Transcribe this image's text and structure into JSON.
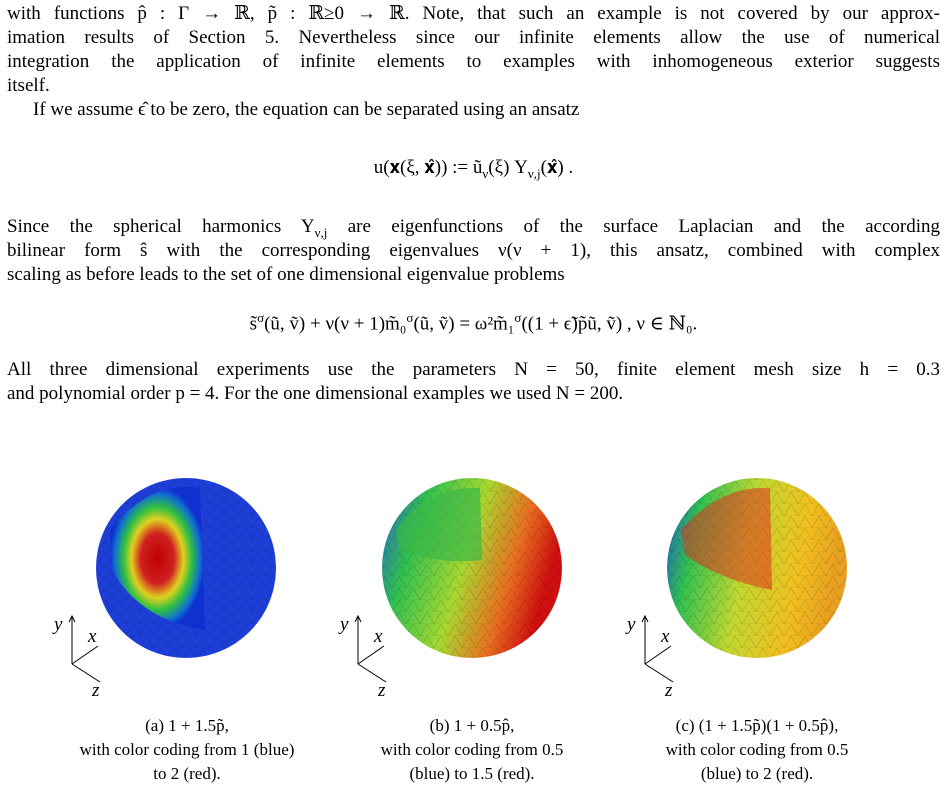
{
  "body": {
    "p1": [
      "with functions p̂ : Γ → ℝ, p̃ : ℝ≥0 → ℝ. Note, that such an example is not covered by our approx-",
      "imation results of Section 5. Nevertheless since our infinite elements allow the use of numerical",
      "integration the application of infinite elements to examples with inhomogeneous exterior suggests",
      "itself."
    ],
    "p2": [
      "If we assume ϵ̂ to be zero, the equation can be separated using an ansatz"
    ],
    "eq1": [
      "u(𝐱(ξ, 𝐱̂)) := ũ",
      "ν",
      "(ξ) Y",
      "ν,j",
      "(𝐱̂) ."
    ],
    "p3a": [
      "Since the spherical harmonics Y",
      "ν,j",
      " are eigenfunctions of the surface Laplacian and the according"
    ],
    "p3": [
      "bilinear form ŝ with the corresponding eigenvalues ν(ν + 1), this ansatz, combined with complex",
      "scaling as before leads to the set of one dimensional eigenvalue problems"
    ],
    "eq2": [
      "s̃",
      "σ",
      "(ũ, ṽ) + ν(ν + 1)m̃₀",
      "σ",
      "(ũ, ṽ) = ω²m̃₁",
      "σ",
      "((1 + ϵ̃)p̃ũ, ṽ) ,    ν ∈ ℕ₀."
    ],
    "p4": [
      "All three dimensional experiments use the parameters N = 50, finite element mesh size h = 0.3",
      "and polynomial order p = 4. For the one dimensional examples we used N = 200."
    ]
  },
  "figures": [
    {
      "axis_labels": [
        "y",
        "x",
        "z"
      ],
      "caption": [
        "(a) 1 + 1.5p̃,",
        "with color coding from 1 (blue)",
        "to 2 (red)."
      ]
    },
    {
      "axis_labels": [
        "y",
        "x",
        "z"
      ],
      "caption": [
        "(b) 1 + 0.5p̂,",
        "with color coding from 0.5",
        "(blue) to 1.5 (red)."
      ]
    },
    {
      "axis_labels": [
        "y",
        "x",
        "z"
      ],
      "caption": [
        "(c) (1 + 1.5p̃)(1 + 0.5p̂),",
        "with color coding from 0.5",
        "(blue) to 2 (red)."
      ]
    }
  ]
}
